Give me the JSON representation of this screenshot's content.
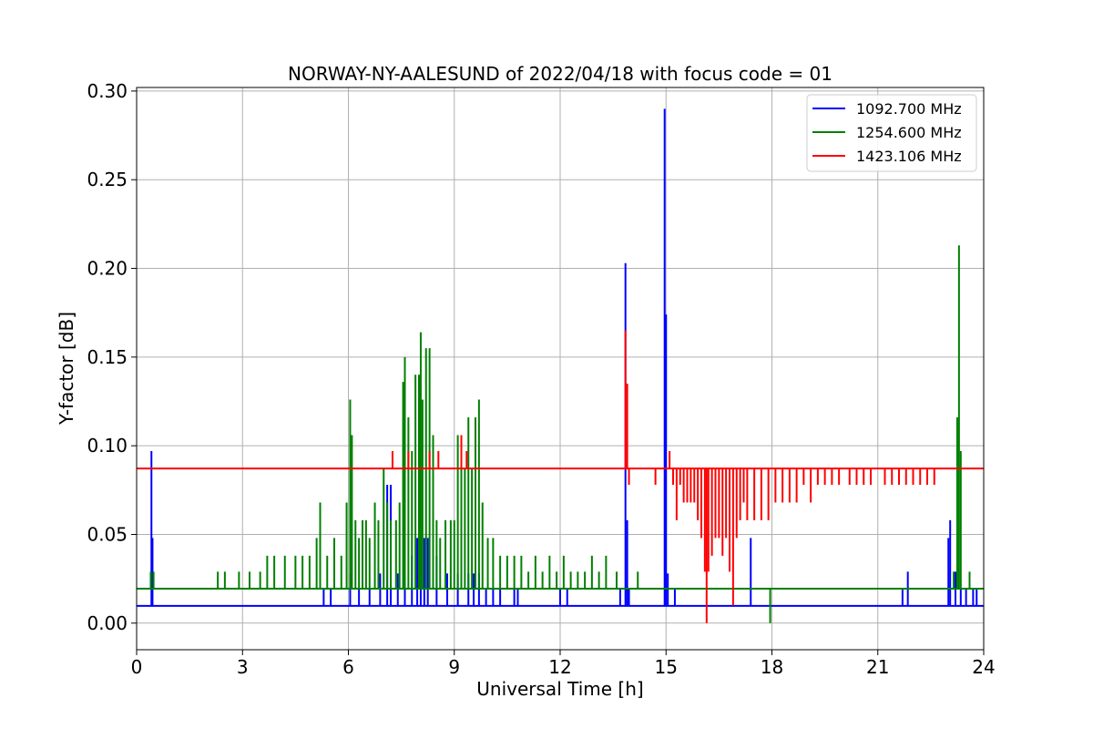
{
  "chart_data": {
    "type": "line",
    "title": "NORWAY-NY-AALESUND of 2022/04/18 with focus code = 01",
    "xlabel": "Universal Time [h]",
    "ylabel": "Y-factor [dB]",
    "xlim": [
      0,
      24
    ],
    "ylim": [
      -0.015,
      0.302
    ],
    "xticks": [
      0,
      3,
      6,
      9,
      12,
      15,
      18,
      21,
      24
    ],
    "xtick_labels": [
      "0",
      "3",
      "6",
      "9",
      "12",
      "15",
      "18",
      "21",
      "24"
    ],
    "yticks": [
      0.0,
      0.05,
      0.1,
      0.15,
      0.2,
      0.25,
      0.3
    ],
    "ytick_labels": [
      "0.00",
      "0.05",
      "0.10",
      "0.15",
      "0.20",
      "0.25",
      "0.30"
    ],
    "grid": true,
    "legend_position": "top-right",
    "series": [
      {
        "name": "1092.700 MHz",
        "color": "#0000ff",
        "baseline": 0.0097,
        "spikes": [
          [
            0.42,
            0.097
          ],
          [
            0.45,
            0.048
          ],
          [
            5.3,
            0.019
          ],
          [
            5.5,
            0.019
          ],
          [
            6.05,
            0.028
          ],
          [
            6.3,
            0.019
          ],
          [
            6.6,
            0.019
          ],
          [
            6.9,
            0.028
          ],
          [
            7.1,
            0.078
          ],
          [
            7.2,
            0.078
          ],
          [
            7.4,
            0.028
          ],
          [
            7.6,
            0.038
          ],
          [
            7.8,
            0.038
          ],
          [
            7.95,
            0.048
          ],
          [
            8.05,
            0.048
          ],
          [
            8.15,
            0.048
          ],
          [
            8.25,
            0.048
          ],
          [
            8.5,
            0.038
          ],
          [
            8.8,
            0.028
          ],
          [
            9.1,
            0.028
          ],
          [
            9.4,
            0.028
          ],
          [
            9.55,
            0.028
          ],
          [
            9.7,
            0.028
          ],
          [
            9.9,
            0.019
          ],
          [
            10.1,
            0.019
          ],
          [
            10.3,
            0.019
          ],
          [
            10.7,
            0.019
          ],
          [
            10.8,
            0.019
          ],
          [
            12.0,
            0.019
          ],
          [
            12.2,
            0.019
          ],
          [
            13.7,
            0.019
          ],
          [
            13.85,
            0.203
          ],
          [
            13.9,
            0.058
          ],
          [
            13.95,
            0.019
          ],
          [
            14.96,
            0.29
          ],
          [
            15.0,
            0.174
          ],
          [
            15.05,
            0.028
          ],
          [
            15.25,
            0.019
          ],
          [
            17.4,
            0.048
          ],
          [
            21.7,
            0.019
          ],
          [
            21.85,
            0.029
          ],
          [
            23.0,
            0.048
          ],
          [
            23.05,
            0.058
          ],
          [
            23.2,
            0.029
          ],
          [
            23.35,
            0.019
          ],
          [
            23.5,
            0.019
          ],
          [
            23.7,
            0.019
          ],
          [
            23.8,
            0.019
          ]
        ]
      },
      {
        "name": "1254.600 MHz",
        "color": "#008000",
        "baseline": 0.0194,
        "spikes": [
          [
            0.4,
            0.029
          ],
          [
            0.48,
            0.029
          ],
          [
            2.3,
            0.029
          ],
          [
            2.5,
            0.029
          ],
          [
            2.9,
            0.029
          ],
          [
            3.2,
            0.029
          ],
          [
            3.5,
            0.029
          ],
          [
            3.7,
            0.038
          ],
          [
            3.9,
            0.038
          ],
          [
            4.2,
            0.038
          ],
          [
            4.5,
            0.038
          ],
          [
            4.7,
            0.038
          ],
          [
            4.9,
            0.038
          ],
          [
            5.1,
            0.048
          ],
          [
            5.2,
            0.068
          ],
          [
            5.4,
            0.038
          ],
          [
            5.6,
            0.048
          ],
          [
            5.8,
            0.038
          ],
          [
            5.95,
            0.068
          ],
          [
            6.05,
            0.126
          ],
          [
            6.1,
            0.106
          ],
          [
            6.2,
            0.058
          ],
          [
            6.3,
            0.048
          ],
          [
            6.4,
            0.058
          ],
          [
            6.5,
            0.058
          ],
          [
            6.6,
            0.048
          ],
          [
            6.75,
            0.068
          ],
          [
            6.85,
            0.058
          ],
          [
            7.0,
            0.087
          ],
          [
            7.1,
            0.068
          ],
          [
            7.2,
            0.058
          ],
          [
            7.35,
            0.058
          ],
          [
            7.45,
            0.068
          ],
          [
            7.55,
            0.136
          ],
          [
            7.6,
            0.15
          ],
          [
            7.7,
            0.116
          ],
          [
            7.8,
            0.097
          ],
          [
            7.9,
            0.14
          ],
          [
            8.0,
            0.14
          ],
          [
            8.05,
            0.164
          ],
          [
            8.1,
            0.126
          ],
          [
            8.2,
            0.155
          ],
          [
            8.3,
            0.155
          ],
          [
            8.4,
            0.106
          ],
          [
            8.5,
            0.058
          ],
          [
            8.6,
            0.048
          ],
          [
            8.75,
            0.058
          ],
          [
            8.9,
            0.058
          ],
          [
            9.0,
            0.058
          ],
          [
            9.1,
            0.106
          ],
          [
            9.2,
            0.097
          ],
          [
            9.3,
            0.087
          ],
          [
            9.4,
            0.116
          ],
          [
            9.5,
            0.087
          ],
          [
            9.6,
            0.116
          ],
          [
            9.7,
            0.126
          ],
          [
            9.8,
            0.068
          ],
          [
            9.95,
            0.048
          ],
          [
            10.1,
            0.048
          ],
          [
            10.3,
            0.038
          ],
          [
            10.5,
            0.038
          ],
          [
            10.7,
            0.038
          ],
          [
            10.9,
            0.038
          ],
          [
            11.1,
            0.029
          ],
          [
            11.3,
            0.038
          ],
          [
            11.5,
            0.029
          ],
          [
            11.7,
            0.038
          ],
          [
            11.9,
            0.029
          ],
          [
            12.1,
            0.038
          ],
          [
            12.3,
            0.029
          ],
          [
            12.5,
            0.029
          ],
          [
            12.7,
            0.029
          ],
          [
            12.9,
            0.038
          ],
          [
            13.1,
            0.029
          ],
          [
            13.3,
            0.038
          ],
          [
            13.6,
            0.029
          ],
          [
            14.2,
            0.029
          ],
          [
            17.95,
            0.0
          ],
          [
            23.15,
            0.029
          ],
          [
            23.25,
            0.116
          ],
          [
            23.3,
            0.213
          ],
          [
            23.35,
            0.097
          ],
          [
            23.6,
            0.029
          ]
        ]
      },
      {
        "name": "1423.106 MHz",
        "color": "#ff0000",
        "baseline": 0.0872,
        "spikes": [
          [
            7.25,
            0.097
          ],
          [
            7.7,
            0.097
          ],
          [
            8.3,
            0.097
          ],
          [
            8.55,
            0.097
          ],
          [
            9.2,
            0.106
          ],
          [
            9.35,
            0.097
          ],
          [
            13.85,
            0.165
          ],
          [
            13.9,
            0.135
          ],
          [
            13.95,
            0.078
          ],
          [
            14.7,
            0.078
          ],
          [
            15.1,
            0.097
          ],
          [
            15.2,
            0.078
          ],
          [
            15.3,
            0.058
          ],
          [
            15.4,
            0.078
          ],
          [
            15.5,
            0.068
          ],
          [
            15.6,
            0.068
          ],
          [
            15.7,
            0.068
          ],
          [
            15.8,
            0.068
          ],
          [
            15.9,
            0.058
          ],
          [
            16.0,
            0.048
          ],
          [
            16.1,
            0.029
          ],
          [
            16.15,
            0.0
          ],
          [
            16.2,
            0.029
          ],
          [
            16.3,
            0.038
          ],
          [
            16.4,
            0.048
          ],
          [
            16.5,
            0.048
          ],
          [
            16.6,
            0.038
          ],
          [
            16.7,
            0.048
          ],
          [
            16.8,
            0.029
          ],
          [
            16.9,
            0.01
          ],
          [
            17.0,
            0.048
          ],
          [
            17.1,
            0.058
          ],
          [
            17.2,
            0.068
          ],
          [
            17.3,
            0.058
          ],
          [
            17.5,
            0.058
          ],
          [
            17.7,
            0.058
          ],
          [
            17.9,
            0.058
          ],
          [
            18.1,
            0.068
          ],
          [
            18.3,
            0.068
          ],
          [
            18.5,
            0.068
          ],
          [
            18.7,
            0.068
          ],
          [
            18.9,
            0.078
          ],
          [
            19.1,
            0.068
          ],
          [
            19.3,
            0.078
          ],
          [
            19.5,
            0.078
          ],
          [
            19.7,
            0.078
          ],
          [
            19.9,
            0.078
          ],
          [
            20.2,
            0.078
          ],
          [
            20.4,
            0.078
          ],
          [
            20.6,
            0.078
          ],
          [
            20.8,
            0.078
          ],
          [
            21.2,
            0.078
          ],
          [
            21.4,
            0.078
          ],
          [
            21.6,
            0.078
          ],
          [
            21.8,
            0.078
          ],
          [
            22.0,
            0.078
          ],
          [
            22.2,
            0.078
          ],
          [
            22.4,
            0.078
          ],
          [
            22.6,
            0.078
          ]
        ]
      }
    ]
  }
}
